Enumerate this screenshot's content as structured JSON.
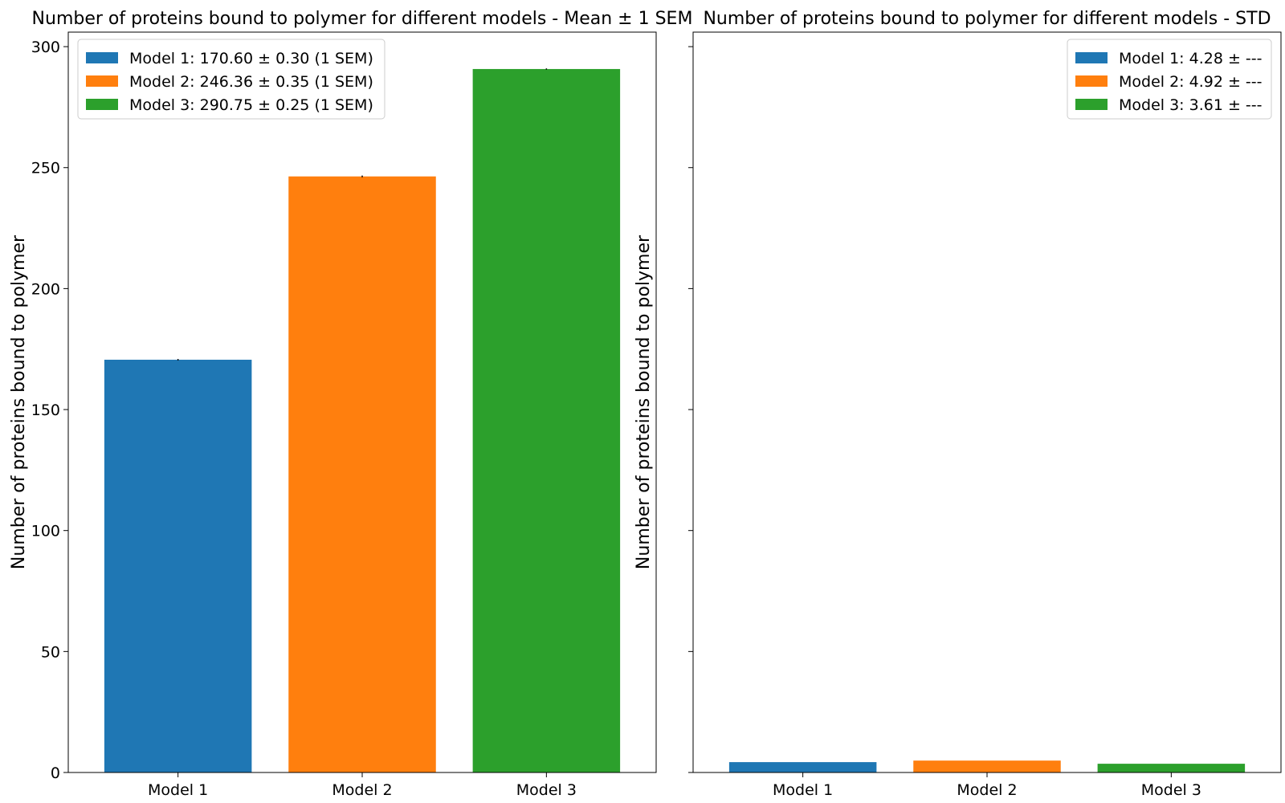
{
  "chart_data": [
    {
      "type": "bar",
      "title": "Number of proteins bound to polymer for different models - Mean ± 1 SEM",
      "xlabel": "",
      "ylabel": "Number of proteins bound to polymer",
      "categories": [
        "Model 1",
        "Model 2",
        "Model 3"
      ],
      "values": [
        170.6,
        246.36,
        290.75
      ],
      "errors": [
        0.3,
        0.35,
        0.25
      ],
      "colors": [
        "#1f77b4",
        "#ff7f0e",
        "#2ca02c"
      ],
      "ylim": [
        0,
        306
      ],
      "yticks": [
        0,
        50,
        100,
        150,
        200,
        250,
        300
      ],
      "ytick_labels": [
        "0",
        "50",
        "100",
        "150",
        "200",
        "250",
        "300"
      ],
      "legend": {
        "position": "upper-left",
        "entries": [
          "Model 1: 170.60 ± 0.30 (1 SEM)",
          "Model 2: 246.36 ± 0.35 (1 SEM)",
          "Model 3: 290.75 ± 0.25 (1 SEM)"
        ]
      },
      "grid": false
    },
    {
      "type": "bar",
      "title": "Number of proteins bound to polymer for different models - STD",
      "xlabel": "",
      "ylabel": "Number of proteins bound to polymer",
      "categories": [
        "Model 1",
        "Model 2",
        "Model 3"
      ],
      "values": [
        4.28,
        4.92,
        3.61
      ],
      "colors": [
        "#1f77b4",
        "#ff7f0e",
        "#2ca02c"
      ],
      "ylim": [
        0,
        306
      ],
      "yticks": [
        0,
        50,
        100,
        150,
        200,
        250,
        300
      ],
      "ytick_labels": [],
      "legend": {
        "position": "upper-right",
        "entries": [
          "Model 1: 4.28 ± ---",
          "Model 2: 4.92 ± ---",
          "Model 3: 3.61 ± ---"
        ]
      },
      "grid": false
    }
  ]
}
